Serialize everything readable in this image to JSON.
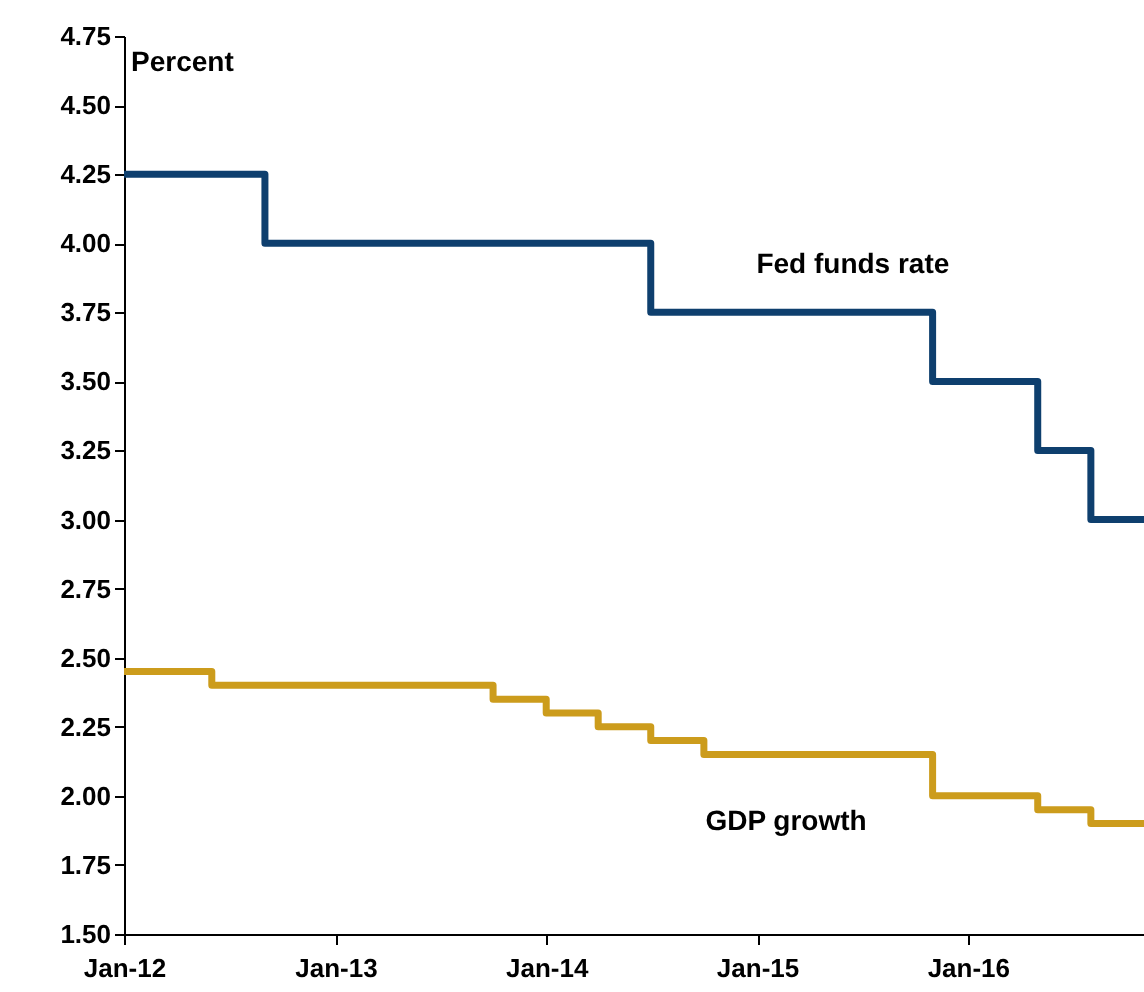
{
  "chart_data": {
    "type": "step",
    "ylabel": "Percent",
    "xlim": [
      "2012-01-01",
      "2016-11-01"
    ],
    "xticks": [
      {
        "value": "2012-01-01",
        "label": "Jan-12"
      },
      {
        "value": "2013-01-01",
        "label": "Jan-13"
      },
      {
        "value": "2014-01-01",
        "label": "Jan-14"
      },
      {
        "value": "2015-01-01",
        "label": "Jan-15"
      },
      {
        "value": "2016-01-01",
        "label": "Jan-16"
      }
    ],
    "ylim": [
      1.5,
      4.75
    ],
    "yticks": [
      {
        "value": 1.5,
        "label": "1.50"
      },
      {
        "value": 1.75,
        "label": "1.75"
      },
      {
        "value": 2,
        "label": "2.00"
      },
      {
        "value": 2.25,
        "label": "2.25"
      },
      {
        "value": 2.5,
        "label": "2.50"
      },
      {
        "value": 2.75,
        "label": "2.75"
      },
      {
        "value": 3,
        "label": "3.00"
      },
      {
        "value": 3.25,
        "label": "3.25"
      },
      {
        "value": 3.5,
        "label": "3.50"
      },
      {
        "value": 3.75,
        "label": "3.75"
      },
      {
        "value": 4,
        "label": "4.00"
      },
      {
        "value": 4.25,
        "label": "4.25"
      },
      {
        "value": 4.5,
        "label": "4.50"
      },
      {
        "value": 4.75,
        "label": "4.75"
      }
    ],
    "grid": false,
    "legend": false,
    "marker": "none",
    "line_style": "solid",
    "series": [
      {
        "name": "Fed funds rate",
        "color": "#0e3f6e",
        "x": [
          "2012-01-01",
          "2012-09-01",
          "2014-07-01",
          "2015-11-01",
          "2016-05-01",
          "2016-08-01",
          "2016-11-01"
        ],
        "values": [
          4.25,
          4.0,
          3.75,
          3.5,
          3.25,
          3.0,
          3.0
        ]
      },
      {
        "name": "GDP growth",
        "color": "#cc9c1c",
        "x": [
          "2012-01-01",
          "2012-06-01",
          "2013-10-01",
          "2014-01-01",
          "2014-04-01",
          "2014-07-01",
          "2014-10-01",
          "2015-11-01",
          "2016-05-01",
          "2016-08-01",
          "2016-11-01"
        ],
        "values": [
          2.45,
          2.4,
          2.35,
          2.3,
          2.25,
          2.2,
          2.15,
          2.0,
          1.95,
          1.9,
          1.9
        ]
      }
    ]
  }
}
